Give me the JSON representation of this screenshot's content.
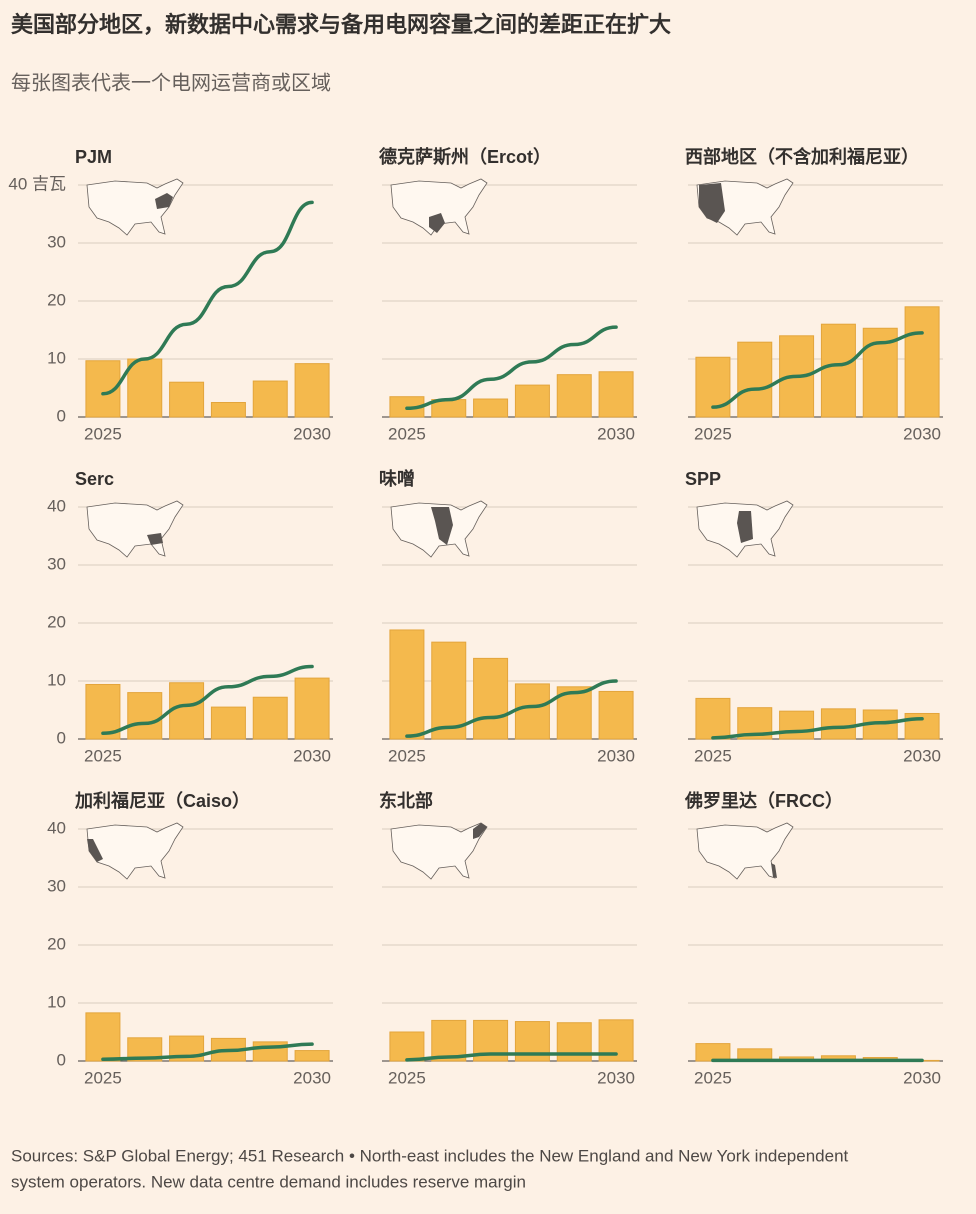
{
  "title": "美国部分地区，新数据中心需求与备用电网容量之间的差距正在扩大",
  "subtitle": "每张图表代表一个电网运营商或区域",
  "source": [
    "Sources: S&P Global Energy; 451 Research • North-east includes the New England and New York independent",
    "system operators. New data centre demand includes reserve margin"
  ],
  "chart_data": [
    {
      "type": "bar",
      "title": "PJM",
      "categories": [
        "2025",
        null,
        null,
        null,
        null,
        "2030"
      ],
      "ylim": [
        0,
        40
      ],
      "yticks": [
        0,
        10,
        20,
        30,
        {
          "value": 40,
          "label": "40 吉瓦"
        }
      ],
      "grid": true,
      "series": [
        {
          "type": "bar",
          "color": "#f4b94d",
          "values": [
            9.7,
            10,
            6,
            2.5,
            6.2,
            9.2
          ]
        },
        {
          "type": "line",
          "color": "#2f7a55",
          "values": [
            4,
            10,
            16,
            22.5,
            28.5,
            37
          ]
        }
      ]
    },
    {
      "type": "bar",
      "title": "德克萨斯州（Ercot）",
      "categories": [
        "2025",
        null,
        null,
        null,
        null,
        "2030"
      ],
      "ylim": [
        0,
        40
      ],
      "yticks": [
        0,
        10,
        20,
        30,
        40
      ],
      "grid": true,
      "series": [
        {
          "type": "bar",
          "color": "#f4b94d",
          "values": [
            3.5,
            3,
            3.1,
            5.5,
            7.3,
            7.8
          ]
        },
        {
          "type": "line",
          "color": "#2f7a55",
          "values": [
            1.5,
            3,
            6.5,
            9.5,
            12.5,
            15.5
          ]
        }
      ]
    },
    {
      "type": "bar",
      "title": "西部地区（不含加利福尼亚）",
      "categories": [
        "2025",
        null,
        null,
        null,
        null,
        "2030"
      ],
      "ylim": [
        0,
        40
      ],
      "yticks": [
        0,
        10,
        20,
        30,
        40
      ],
      "grid": true,
      "series": [
        {
          "type": "bar",
          "color": "#f4b94d",
          "values": [
            10.3,
            12.9,
            14,
            16,
            15.3,
            19
          ]
        },
        {
          "type": "line",
          "color": "#2f7a55",
          "values": [
            1.7,
            4.8,
            7,
            9,
            12.8,
            14.5
          ]
        }
      ]
    },
    {
      "type": "bar",
      "title": "Serc",
      "categories": [
        "2025",
        null,
        null,
        null,
        null,
        "2030"
      ],
      "ylim": [
        0,
        40
      ],
      "yticks": [
        0,
        10,
        20,
        30,
        40
      ],
      "grid": true,
      "series": [
        {
          "type": "bar",
          "color": "#f4b94d",
          "values": [
            9.4,
            8,
            9.7,
            5.5,
            7.2,
            10.5
          ]
        },
        {
          "type": "line",
          "color": "#2f7a55",
          "values": [
            1,
            2.7,
            5.8,
            9,
            10.8,
            12.5
          ]
        }
      ]
    },
    {
      "type": "bar",
      "title": "味噌",
      "categories": [
        "2025",
        null,
        null,
        null,
        null,
        "2030"
      ],
      "ylim": [
        0,
        40
      ],
      "yticks": [
        0,
        10,
        20,
        30,
        40
      ],
      "grid": true,
      "series": [
        {
          "type": "bar",
          "color": "#f4b94d",
          "values": [
            18.8,
            16.7,
            13.9,
            9.5,
            9,
            8.2
          ]
        },
        {
          "type": "line",
          "color": "#2f7a55",
          "values": [
            0.5,
            2,
            3.7,
            5.6,
            8,
            10
          ]
        }
      ]
    },
    {
      "type": "bar",
      "title": "SPP",
      "categories": [
        "2025",
        null,
        null,
        null,
        null,
        "2030"
      ],
      "ylim": [
        0,
        40
      ],
      "yticks": [
        0,
        10,
        20,
        30,
        40
      ],
      "grid": true,
      "series": [
        {
          "type": "bar",
          "color": "#f4b94d",
          "values": [
            7,
            5.4,
            4.8,
            5.2,
            5,
            4.4
          ]
        },
        {
          "type": "line",
          "color": "#2f7a55",
          "values": [
            0.2,
            0.8,
            1.3,
            2,
            2.8,
            3.5
          ]
        }
      ]
    },
    {
      "type": "bar",
      "title": "加利福尼亚（Caiso）",
      "categories": [
        "2025",
        null,
        null,
        null,
        null,
        "2030"
      ],
      "ylim": [
        0,
        40
      ],
      "yticks": [
        0,
        10,
        20,
        30,
        40
      ],
      "grid": true,
      "series": [
        {
          "type": "bar",
          "color": "#f4b94d",
          "values": [
            8.3,
            4,
            4.3,
            3.9,
            3.3,
            1.8
          ]
        },
        {
          "type": "line",
          "color": "#2f7a55",
          "values": [
            0.3,
            0.5,
            0.8,
            1.8,
            2.4,
            2.9
          ]
        }
      ]
    },
    {
      "type": "bar",
      "title": "东北部",
      "categories": [
        "2025",
        null,
        null,
        null,
        null,
        "2030"
      ],
      "ylim": [
        0,
        40
      ],
      "yticks": [
        0,
        10,
        20,
        30,
        40
      ],
      "grid": true,
      "series": [
        {
          "type": "bar",
          "color": "#f4b94d",
          "values": [
            5,
            7,
            7,
            6.8,
            6.6,
            7.1
          ]
        },
        {
          "type": "line",
          "color": "#2f7a55",
          "values": [
            0.2,
            0.7,
            1.2,
            1.2,
            1.2,
            1.2
          ]
        }
      ]
    },
    {
      "type": "bar",
      "title": "佛罗里达（FRCC）",
      "categories": [
        "2025",
        null,
        null,
        null,
        null,
        "2030"
      ],
      "ylim": [
        0,
        40
      ],
      "yticks": [
        0,
        10,
        20,
        30,
        40
      ],
      "grid": true,
      "series": [
        {
          "type": "bar",
          "color": "#f4b94d",
          "values": [
            3,
            2.1,
            0.7,
            0.9,
            0.6,
            0.1
          ]
        },
        {
          "type": "line",
          "color": "#2f7a55",
          "values": [
            0.1,
            0.1,
            0.1,
            0.1,
            0.1,
            0.1
          ]
        }
      ]
    }
  ]
}
